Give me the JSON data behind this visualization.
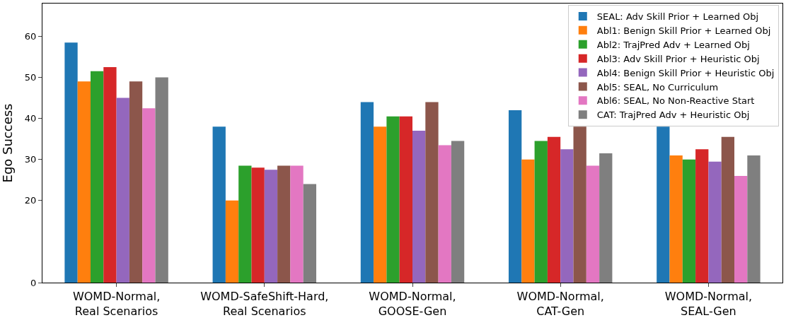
{
  "chart_data": {
    "type": "bar",
    "ylabel": "Ego Success",
    "categories": [
      "WOMD-Normal,\nReal Scenarios",
      "WOMD-SafeShift-Hard,\nReal Scenarios",
      "WOMD-Normal,\nGOOSE-Gen",
      "WOMD-Normal,\nCAT-Gen",
      "WOMD-Normal,\nSEAL-Gen"
    ],
    "series": [
      {
        "name": "SEAL: Adv Skill Prior + Learned Obj",
        "color": "#1f77b4",
        "values": [
          58.5,
          38,
          44,
          42,
          38
        ]
      },
      {
        "name": "Abl1: Benign Skill Prior + Learned Obj",
        "color": "#ff7f0e",
        "values": [
          49,
          20,
          38,
          30,
          31
        ]
      },
      {
        "name": "Abl2: TrajPred Adv + Learned Obj",
        "color": "#2ca02c",
        "values": [
          51.5,
          28.5,
          40.5,
          34.5,
          30
        ]
      },
      {
        "name": "Abl3: Adv Skill Prior + Heuristic Obj",
        "color": "#d62728",
        "values": [
          52.5,
          28,
          40.5,
          35.5,
          32.5
        ]
      },
      {
        "name": "Abl4: Benign Skill Prior + Heuristic Obj",
        "color": "#9467bd",
        "values": [
          45,
          27.5,
          37,
          32.5,
          29.5
        ]
      },
      {
        "name": "Abl5: SEAL, No Curriculum",
        "color": "#8c564b",
        "values": [
          49,
          28.5,
          44,
          38,
          35.5
        ]
      },
      {
        "name": "Abl6: SEAL, No Non-Reactive Start",
        "color": "#e377c2",
        "values": [
          42.5,
          28.5,
          33.5,
          28.5,
          26
        ]
      },
      {
        "name": "CAT: TrajPred Adv + Heuristic Obj",
        "color": "#7f7f7f",
        "values": [
          50,
          24,
          34.5,
          31.5,
          31
        ]
      }
    ],
    "ylim": [
      0,
      68
    ],
    "yticks": [
      0,
      20,
      30,
      40,
      50,
      60
    ],
    "legend": "top right"
  }
}
